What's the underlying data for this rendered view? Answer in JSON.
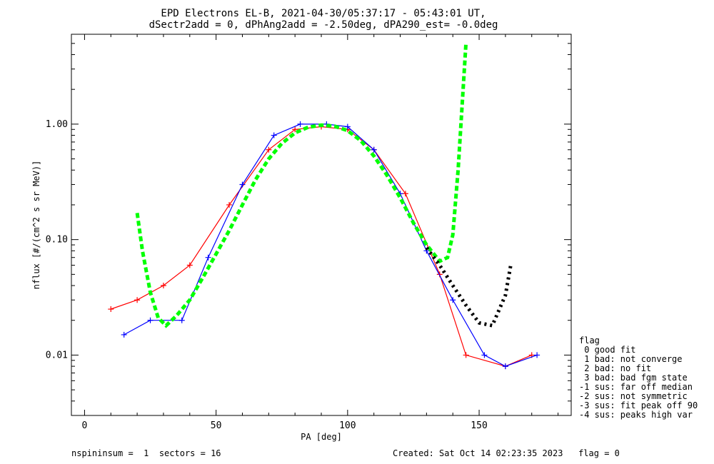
{
  "chart_data": {
    "type": "line",
    "title": "EPD Electrons EL-B, 2021-04-30/05:37:17 - 05:43:01 UT,",
    "subtitle": "dSectr2add = 0, dPhAng2add = -2.50deg, dPA290_est=  -0.0deg",
    "xlabel": "PA [deg]",
    "ylabel": "nflux [#/(cm^2 s sr MeV)]",
    "xlim": [
      -5,
      185
    ],
    "ylim": [
      0.003,
      6
    ],
    "yscale": "log",
    "xticks": [
      0,
      50,
      100,
      150
    ],
    "yticks": [
      0.01,
      0.1,
      1.0
    ],
    "ytick_labels": [
      "0.01",
      "0.10",
      "1.00"
    ],
    "grid": false,
    "series": [
      {
        "color": "#ff0000",
        "x": [
          10,
          20,
          30,
          40,
          55,
          70,
          80,
          90,
          100,
          110,
          122,
          135,
          145,
          160,
          170
        ],
        "values": [
          0.025,
          0.03,
          0.04,
          0.06,
          0.2,
          0.6,
          0.9,
          0.95,
          0.9,
          0.6,
          0.25,
          0.05,
          0.01,
          0.008,
          0.01
        ]
      },
      {
        "color": "#0000ff",
        "x": [
          15,
          25,
          37,
          47,
          60,
          72,
          82,
          92,
          100,
          110,
          120,
          130,
          140,
          152,
          160,
          172
        ],
        "values": [
          0.015,
          0.02,
          0.02,
          0.07,
          0.3,
          0.8,
          1.0,
          1.0,
          0.95,
          0.6,
          0.25,
          0.08,
          0.03,
          0.01,
          0.008,
          0.01
        ]
      },
      {
        "color": "#00ff00",
        "x": [
          20,
          22,
          25,
          28,
          31,
          35,
          40,
          45,
          50,
          55,
          60,
          65,
          70,
          75,
          80,
          85,
          90,
          95,
          100,
          105,
          110,
          115,
          120,
          125,
          130,
          135,
          138,
          140,
          142,
          145
        ],
        "values": [
          0.17,
          0.08,
          0.035,
          0.021,
          0.018,
          0.022,
          0.03,
          0.047,
          0.075,
          0.12,
          0.2,
          0.33,
          0.5,
          0.68,
          0.84,
          0.94,
          0.98,
          0.96,
          0.88,
          0.72,
          0.53,
          0.36,
          0.23,
          0.14,
          0.09,
          0.065,
          0.07,
          0.11,
          0.4,
          5.0
        ]
      },
      {
        "color": "#000000",
        "x": [
          130,
          135,
          140,
          145,
          150,
          155,
          160,
          162
        ],
        "values": [
          0.085,
          0.06,
          0.04,
          0.027,
          0.019,
          0.018,
          0.033,
          0.06
        ]
      }
    ]
  },
  "legend": {
    "title": "flag",
    "items": [
      " 0 good fit",
      " 1 bad: not converge",
      " 2 bad: no fit",
      " 3 bad: bad fgm state",
      "-1 sus: far off median",
      "-2 sus: not symmetric",
      "-3 sus: fit peak off 90",
      "-4 sus: peaks high var"
    ]
  },
  "footer": {
    "left": "nspininsum =  1  sectors = 16",
    "right": "Created: Sat Oct 14 02:23:35 2023   flag = 0"
  }
}
